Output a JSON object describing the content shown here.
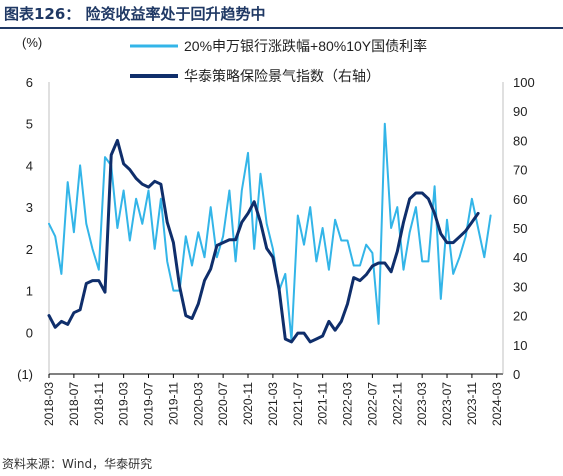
{
  "header": {
    "title": "图表126： 险资收益率处于回升趋势中"
  },
  "footer": {
    "source": "资料来源：Wind，华泰研究"
  },
  "colors": {
    "series1": "#33b5e8",
    "series2": "#0f2e6b",
    "title": "#1f3864"
  },
  "chart_data": {
    "type": "line",
    "left_axis_unit": "(%)",
    "legend": [
      "20%申万银行涨跌幅+80%10Y国债利率",
      "华泰策略保险景气指数（右轴）"
    ],
    "left_ylim": [
      -1,
      6
    ],
    "right_ylim": [
      0,
      100
    ],
    "left_ticks": [
      "(1)",
      "0",
      "1",
      "2",
      "3",
      "4",
      "5",
      "6"
    ],
    "right_ticks": [
      "0",
      "10",
      "20",
      "30",
      "40",
      "50",
      "60",
      "70",
      "80",
      "90",
      "100"
    ],
    "x_ticks": [
      "2018-03",
      "2018-07",
      "2018-11",
      "2019-03",
      "2019-07",
      "2019-11",
      "2020-03",
      "2020-07",
      "2020-11",
      "2021-03",
      "2021-07",
      "2021-11",
      "2022-03",
      "2022-07",
      "2022-11",
      "2023-03",
      "2023-07",
      "2023-11",
      "2024-03"
    ],
    "x_start": "2018-03",
    "x_end": "2024-04",
    "series": [
      {
        "name": "20%申万银行涨跌幅+80%10Y国债利率",
        "axis": "left",
        "values": [
          2.6,
          2.3,
          1.4,
          3.6,
          2.4,
          4.0,
          2.6,
          2.0,
          1.5,
          4.2,
          4.0,
          2.5,
          3.4,
          2.2,
          3.2,
          2.6,
          3.4,
          2.0,
          3.2,
          1.7,
          1.0,
          1.0,
          2.3,
          1.6,
          2.4,
          1.8,
          3.0,
          1.8,
          2.3,
          3.4,
          1.7,
          3.4,
          4.3,
          2.0,
          3.8,
          2.6,
          2.0,
          1.0,
          1.4,
          -0.2,
          2.8,
          2.1,
          3.0,
          1.7,
          2.5,
          1.5,
          2.7,
          2.2,
          2.2,
          1.6,
          1.6,
          2.1,
          1.9,
          0.2,
          5.0,
          2.5,
          3.0,
          1.5,
          2.4,
          3.0,
          1.7,
          1.7,
          3.5,
          0.8,
          2.7,
          1.4,
          1.8,
          2.3,
          3.2,
          2.5,
          1.8,
          2.8
        ]
      },
      {
        "name": "华泰策略保险景气指数（右轴）",
        "axis": "right",
        "values": [
          20,
          16,
          18,
          17,
          21,
          22,
          31,
          32,
          32,
          28,
          75,
          80,
          72,
          70,
          67,
          65,
          64,
          66,
          65,
          52,
          45,
          30,
          20,
          19,
          24,
          32,
          36,
          44,
          45,
          46,
          46,
          52,
          55,
          59,
          52,
          43,
          40,
          29,
          12,
          11,
          14,
          14,
          11,
          12,
          13,
          18,
          15,
          18,
          24,
          33,
          32,
          34,
          37,
          38,
          38,
          35,
          42,
          52,
          60,
          62,
          62,
          60,
          55,
          48,
          45,
          45,
          47,
          49,
          52,
          55
        ]
      }
    ]
  }
}
